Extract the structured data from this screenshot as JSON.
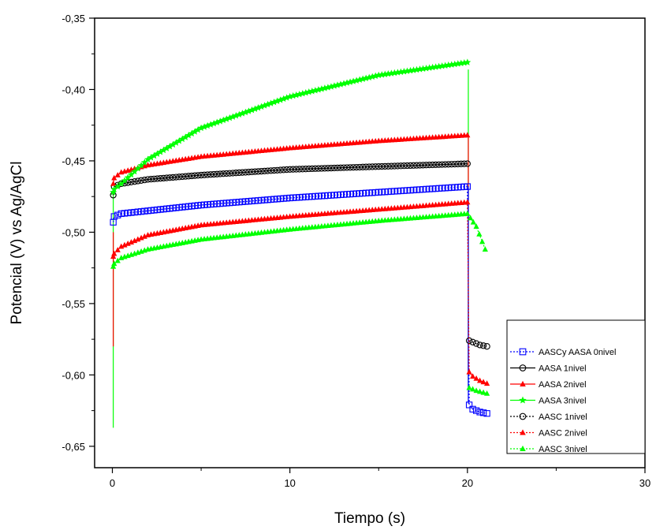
{
  "chart_data": {
    "type": "scatter",
    "title": "",
    "xlabel": "Tiempo (s)",
    "ylabel": "Potencial (V) vs Ag/AgCl",
    "xlim": [
      -1,
      30
    ],
    "ylim": [
      -0.665,
      -0.35
    ],
    "x_ticks": [
      0,
      10,
      20,
      30
    ],
    "y_ticks": [
      -0.35,
      -0.4,
      -0.45,
      -0.5,
      -0.55,
      -0.6,
      -0.65
    ],
    "x_tick_labels": [
      "0",
      "10",
      "20",
      "30"
    ],
    "y_tick_labels": [
      "-0,35",
      "-0,40",
      "-0,45",
      "-0,50",
      "-0,55",
      "-0,60",
      "-0,65"
    ],
    "grid": false,
    "legend_position": "bottom-right",
    "series": [
      {
        "name": "AASCy AASA 0nivel",
        "color": "#0000ff",
        "marker": "square-open",
        "line": "dotted",
        "points": [
          [
            0.05,
            -0.493
          ],
          [
            0.1,
            -0.489
          ],
          [
            0.5,
            -0.487
          ],
          [
            2,
            -0.485
          ],
          [
            5,
            -0.481
          ],
          [
            10,
            -0.476
          ],
          [
            15,
            -0.472
          ],
          [
            20,
            -0.468
          ],
          [
            20.1,
            -0.621
          ],
          [
            20.3,
            -0.624
          ],
          [
            20.7,
            -0.626
          ],
          [
            21.1,
            -0.627
          ]
        ]
      },
      {
        "name": "AASA 1nivel",
        "color": "#000000",
        "marker": "circle-open",
        "line": "solid",
        "points": [
          [
            0.05,
            -0.474
          ],
          [
            0.1,
            -0.468
          ],
          [
            0.5,
            -0.466
          ],
          [
            2,
            -0.463
          ],
          [
            5,
            -0.46
          ],
          [
            10,
            -0.456
          ],
          [
            15,
            -0.454
          ],
          [
            20,
            -0.452
          ]
        ]
      },
      {
        "name": "AASA 2nivel",
        "color": "#ff0000",
        "marker": "triangle-filled",
        "line": "solid",
        "points": [
          [
            0.05,
            -0.466
          ],
          [
            0.1,
            -0.462
          ],
          [
            0.5,
            -0.458
          ],
          [
            2,
            -0.453
          ],
          [
            5,
            -0.447
          ],
          [
            10,
            -0.441
          ],
          [
            15,
            -0.436
          ],
          [
            20,
            -0.432
          ]
        ]
      },
      {
        "name": "AASA 3nivel",
        "color": "#00ff00",
        "marker": "star-filled",
        "line": "solid",
        "points": [
          [
            0.05,
            -0.472
          ],
          [
            0.1,
            -0.47
          ],
          [
            0.5,
            -0.466
          ],
          [
            2,
            -0.449
          ],
          [
            5,
            -0.427
          ],
          [
            10,
            -0.405
          ],
          [
            15,
            -0.39
          ],
          [
            20,
            -0.381
          ]
        ]
      },
      {
        "name": "AASC 1nivel",
        "color": "#000000",
        "marker": "circle-open",
        "line": "dotted",
        "points": [
          [
            20.1,
            -0.576
          ],
          [
            20.3,
            -0.577
          ],
          [
            20.7,
            -0.579
          ],
          [
            21.1,
            -0.58
          ]
        ]
      },
      {
        "name": "AASC 2nivel",
        "color": "#ff0000",
        "marker": "triangle-filled",
        "line": "dotted",
        "points": [
          [
            0.05,
            -0.517
          ],
          [
            0.1,
            -0.515
          ],
          [
            0.5,
            -0.51
          ],
          [
            2,
            -0.502
          ],
          [
            5,
            -0.495
          ],
          [
            10,
            -0.489
          ],
          [
            15,
            -0.484
          ],
          [
            20,
            -0.479
          ],
          [
            20.1,
            -0.598
          ],
          [
            20.3,
            -0.601
          ],
          [
            20.7,
            -0.604
          ],
          [
            21.1,
            -0.606
          ]
        ]
      },
      {
        "name": "AASC 3nivel",
        "color": "#00ff00",
        "marker": "triangle-filled",
        "line": "dotted",
        "points": [
          [
            0.05,
            -0.524
          ],
          [
            0.1,
            -0.522
          ],
          [
            0.5,
            -0.518
          ],
          [
            2,
            -0.512
          ],
          [
            5,
            -0.505
          ],
          [
            10,
            -0.498
          ],
          [
            15,
            -0.492
          ],
          [
            20,
            -0.487
          ],
          [
            20.5,
            -0.496
          ],
          [
            21,
            -0.512
          ],
          [
            20.1,
            -0.609
          ],
          [
            20.5,
            -0.611
          ],
          [
            21.1,
            -0.613
          ]
        ]
      }
    ],
    "vertical_transients": [
      {
        "x": 0.05,
        "y_from": -0.47,
        "y_to": -0.637,
        "color": "#00ff00"
      },
      {
        "x": 0.05,
        "y_from": -0.5,
        "y_to": -0.58,
        "color": "#ff0000"
      },
      {
        "x": 20.05,
        "y_from": -0.386,
        "y_to": -0.61,
        "color": "#00ff00"
      },
      {
        "x": 20.05,
        "y_from": -0.433,
        "y_to": -0.6,
        "color": "#ff0000"
      },
      {
        "x": 20.05,
        "y_from": -0.468,
        "y_to": -0.62,
        "color": "#0000ff"
      }
    ]
  }
}
